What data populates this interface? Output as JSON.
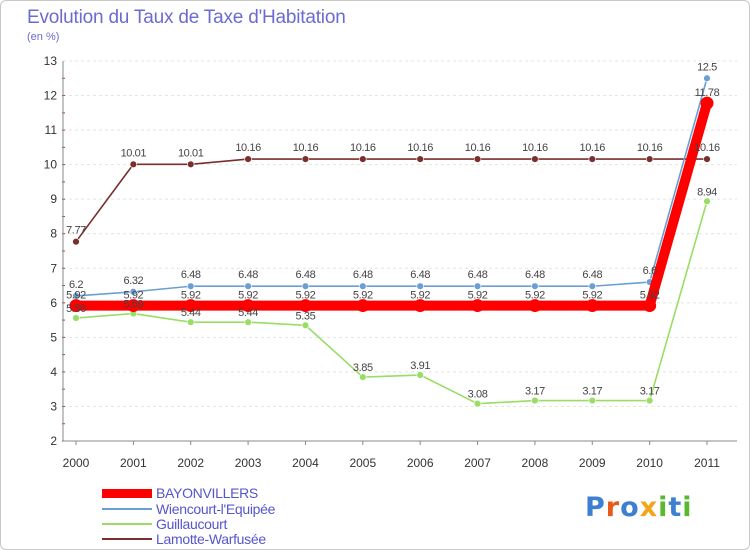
{
  "header": {
    "title": "Evolution du Taux de Taxe d'Habitation",
    "subtitle": "(en %)"
  },
  "chart_data": {
    "type": "line",
    "title": "Evolution du Taux de Taxe d'Habitation",
    "ylabel": "(en %)",
    "xlabel": "",
    "ylim": [
      2,
      13
    ],
    "y_ticks": [
      2,
      3,
      4,
      5,
      6,
      7,
      8,
      9,
      10,
      11,
      12,
      13
    ],
    "categories": [
      "2000",
      "2001",
      "2002",
      "2003",
      "2004",
      "2005",
      "2006",
      "2007",
      "2008",
      "2009",
      "2010",
      "2011"
    ],
    "series": [
      {
        "name": "BAYONVILLERS",
        "color": "#ff0000",
        "values": [
          5.92,
          5.92,
          5.92,
          5.92,
          5.92,
          5.92,
          5.92,
          5.92,
          5.92,
          5.92,
          5.92,
          11.78
        ],
        "labels": [
          "5.92",
          "5.92",
          "5.92",
          "5.92",
          "5.92",
          "5.92",
          "5.92",
          "5.92",
          "5.92",
          "5.92",
          "5.92",
          "11.78"
        ]
      },
      {
        "name": "Wiencourt-l'Equipée",
        "color": "#6b9fd4",
        "values": [
          6.2,
          6.32,
          6.48,
          6.48,
          6.48,
          6.48,
          6.48,
          6.48,
          6.48,
          6.48,
          6.6,
          12.5
        ],
        "labels": [
          "6.2",
          "6.32",
          "6.48",
          "6.48",
          "6.48",
          "6.48",
          "6.48",
          "6.48",
          "6.48",
          "6.48",
          "6.6",
          "12.5"
        ]
      },
      {
        "name": "Guillaucourt",
        "color": "#99dd66",
        "values": [
          5.56,
          5.69,
          5.44,
          5.44,
          5.35,
          3.85,
          3.91,
          3.08,
          3.17,
          3.17,
          3.17,
          8.94
        ],
        "labels": [
          "5.56",
          "5.69",
          "5.44",
          "5.44",
          "5.35",
          "3.85",
          "3.91",
          "3.08",
          "3.17",
          "3.17",
          "3.17",
          "8.94"
        ]
      },
      {
        "name": "Lamotte-Warfusée",
        "color": "#7a2e2e",
        "values": [
          7.77,
          10.01,
          10.01,
          10.16,
          10.16,
          10.16,
          10.16,
          10.16,
          10.16,
          10.16,
          10.16,
          10.16
        ],
        "labels": [
          "7.77",
          "10.01",
          "10.01",
          "10.16",
          "10.16",
          "10.16",
          "10.16",
          "10.16",
          "10.16",
          "10.16",
          "10.16",
          "10.16"
        ]
      }
    ]
  },
  "legend": {
    "items": [
      "BAYONVILLERS",
      "Wiencourt-l'Equipée",
      "Guillaucourt",
      "Lamotte-Warfusée"
    ]
  },
  "logo": {
    "text": "Proxiti",
    "colors": [
      "#3d7fd0",
      "#e8591a",
      "#3d7fd0",
      "#f2a51a",
      "#5ab82e",
      "#3d7fd0",
      "#5ab82e"
    ]
  }
}
